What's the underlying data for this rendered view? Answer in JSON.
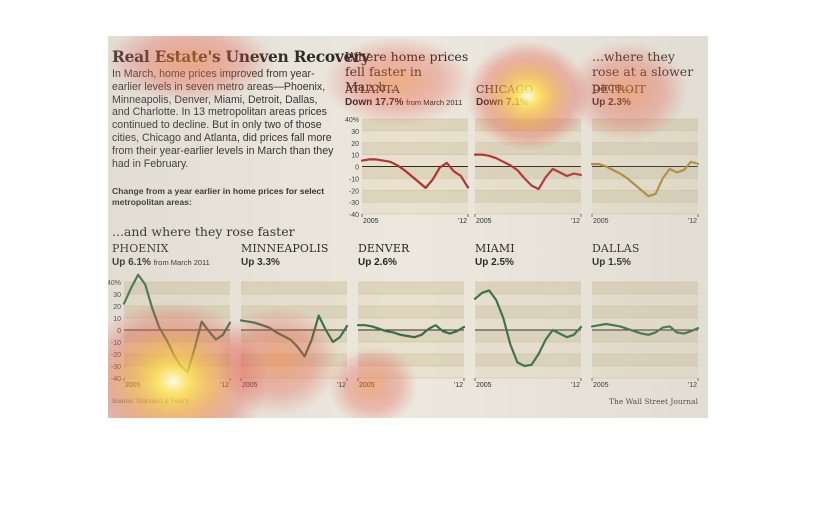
{
  "header": {
    "title": "Real Estate's Uneven Recovery",
    "intro": "In March, home prices improved from year-earlier levels in seven metro areas—Phoenix, Minneapolis, Denver, Miami, Detroit, Dallas, and Charlotte. In 13 metropolitan areas prices continued to decline. But in only two of those cities, Chicago and Atlanta, did prices fall more from their year-earlier levels in March than they had in February.",
    "note": "Change from a year earlier in home prices for select metropolitan areas:"
  },
  "sections": {
    "faster_fall": "Where home prices fell faster in March...",
    "slower_rise": "...where they rose at a slower pace...",
    "faster_rise": "...and where they rose faster"
  },
  "footer": {
    "source": "Source: Standard & Poor's",
    "credit": "The Wall Street Journal"
  },
  "colors": {
    "decline": "#b5262c",
    "slower": "#b0862a",
    "faster": "#2e6b3d",
    "band": "#e0d6bd",
    "band_alt": "#ebe4d1",
    "zero_line": "#222222"
  },
  "chart_data": [
    {
      "type": "line",
      "city": "ATLANTA",
      "label": "Down 17.7%",
      "label_note": "from March 2011",
      "xlabel": "",
      "ylabel": "",
      "ylim": [
        -40,
        40
      ],
      "yticks": [
        "40%",
        "30",
        "20",
        "10",
        "0",
        "-10",
        "-20",
        "-30",
        "-40"
      ],
      "xticks": [
        "2005",
        "'12"
      ],
      "x_range": [
        2004.7,
        2012.2
      ],
      "x": [
        2004.7,
        2005.2,
        2005.7,
        2006.2,
        2006.7,
        2007.2,
        2007.7,
        2008.2,
        2008.7,
        2009.2,
        2009.7,
        2010.2,
        2010.7,
        2011.2,
        2011.7,
        2012.2
      ],
      "values": [
        5,
        6,
        6,
        5,
        4,
        1,
        -3,
        -8,
        -13,
        -18,
        -11,
        -1,
        3,
        -4,
        -8,
        -17.7
      ]
    },
    {
      "type": "line",
      "city": "CHICAGO",
      "label": "Down 7.1%",
      "xlabel": "",
      "ylabel": "",
      "ylim": [
        -40,
        40
      ],
      "xticks": [
        "2005",
        "'12"
      ],
      "x_range": [
        2004.7,
        2012.2
      ],
      "x": [
        2004.7,
        2005.2,
        2005.7,
        2006.2,
        2006.7,
        2007.2,
        2007.7,
        2008.2,
        2008.7,
        2009.2,
        2009.7,
        2010.2,
        2010.7,
        2011.2,
        2011.7,
        2012.2
      ],
      "values": [
        10,
        10,
        9,
        7,
        4,
        1,
        -3,
        -10,
        -16,
        -19,
        -9,
        -2,
        -5,
        -8,
        -6,
        -7.1
      ]
    },
    {
      "type": "line",
      "city": "DETROIT",
      "label": "Up 2.3%",
      "xlabel": "",
      "ylabel": "",
      "ylim": [
        -40,
        40
      ],
      "xticks": [
        "2005",
        "'12"
      ],
      "x_range": [
        2004.7,
        2012.2
      ],
      "x": [
        2004.7,
        2005.2,
        2005.7,
        2006.2,
        2006.7,
        2007.2,
        2007.7,
        2008.2,
        2008.7,
        2009.2,
        2009.7,
        2010.2,
        2010.7,
        2011.2,
        2011.7,
        2012.2
      ],
      "values": [
        2,
        2,
        0,
        -3,
        -6,
        -10,
        -15,
        -20,
        -25,
        -23,
        -10,
        -2,
        -5,
        -3,
        4,
        2.3
      ]
    },
    {
      "type": "line",
      "city": "PHOENIX",
      "label": "Up 6.1%",
      "label_note": "from March 2011",
      "xlabel": "",
      "ylabel": "",
      "ylim": [
        -40,
        40
      ],
      "yticks": [
        "40%",
        "30",
        "20",
        "10",
        "0",
        "-10",
        "-20",
        "-30",
        "-40"
      ],
      "xticks": [
        "2005",
        "'12"
      ],
      "x_range": [
        2004.7,
        2012.2
      ],
      "x": [
        2004.7,
        2005.2,
        2005.7,
        2006.2,
        2006.7,
        2007.2,
        2007.7,
        2008.2,
        2008.7,
        2009.2,
        2009.7,
        2010.2,
        2010.7,
        2011.2,
        2011.7,
        2012.2
      ],
      "values": [
        22,
        35,
        46,
        38,
        18,
        2,
        -8,
        -20,
        -30,
        -35,
        -15,
        7,
        -1,
        -8,
        -4,
        6.1
      ]
    },
    {
      "type": "line",
      "city": "MINNEAPOLIS",
      "label": "Up 3.3%",
      "xlabel": "",
      "ylabel": "",
      "ylim": [
        -40,
        40
      ],
      "xticks": [
        "2005",
        "'12"
      ],
      "x_range": [
        2004.7,
        2012.2
      ],
      "x": [
        2004.7,
        2005.2,
        2005.7,
        2006.2,
        2006.7,
        2007.2,
        2007.7,
        2008.2,
        2008.7,
        2009.2,
        2009.7,
        2010.2,
        2010.7,
        2011.2,
        2011.7,
        2012.2
      ],
      "values": [
        8,
        7,
        6,
        4,
        2,
        -2,
        -5,
        -8,
        -14,
        -22,
        -8,
        12,
        0,
        -10,
        -6,
        3.3
      ]
    },
    {
      "type": "line",
      "city": "DENVER",
      "label": "Up 2.6%",
      "xlabel": "",
      "ylabel": "",
      "ylim": [
        -40,
        40
      ],
      "xticks": [
        "2005",
        "'12"
      ],
      "x_range": [
        2004.7,
        2012.2
      ],
      "x": [
        2004.7,
        2005.2,
        2005.7,
        2006.2,
        2006.7,
        2007.2,
        2007.7,
        2008.2,
        2008.7,
        2009.2,
        2009.7,
        2010.2,
        2010.7,
        2011.2,
        2011.7,
        2012.2
      ],
      "values": [
        4,
        4,
        3,
        1,
        -1,
        -2,
        -4,
        -5,
        -6,
        -4,
        1,
        4,
        -1,
        -3,
        -1,
        2.6
      ]
    },
    {
      "type": "line",
      "city": "MIAMI",
      "label": "Up 2.5%",
      "xlabel": "",
      "ylabel": "",
      "ylim": [
        -40,
        40
      ],
      "xticks": [
        "2005",
        "'12"
      ],
      "x_range": [
        2004.7,
        2012.2
      ],
      "x": [
        2004.7,
        2005.2,
        2005.7,
        2006.2,
        2006.7,
        2007.2,
        2007.7,
        2008.2,
        2008.7,
        2009.2,
        2009.7,
        2010.2,
        2010.7,
        2011.2,
        2011.7,
        2012.2
      ],
      "values": [
        26,
        31,
        33,
        25,
        10,
        -12,
        -27,
        -30,
        -29,
        -20,
        -8,
        0,
        -3,
        -6,
        -4,
        2.5
      ]
    },
    {
      "type": "line",
      "city": "DALLAS",
      "label": "Up 1.5%",
      "xlabel": "",
      "ylabel": "",
      "ylim": [
        -40,
        40
      ],
      "xticks": [
        "2005",
        "'12"
      ],
      "x_range": [
        2004.7,
        2012.2
      ],
      "x": [
        2004.7,
        2005.2,
        2005.7,
        2006.2,
        2006.7,
        2007.2,
        2007.7,
        2008.2,
        2008.7,
        2009.2,
        2009.7,
        2010.2,
        2010.7,
        2011.2,
        2011.7,
        2012.2
      ],
      "values": [
        3,
        4,
        5,
        4,
        3,
        1,
        -1,
        -3,
        -4,
        -2,
        2,
        3,
        -2,
        -3,
        -1,
        1.5
      ]
    }
  ]
}
